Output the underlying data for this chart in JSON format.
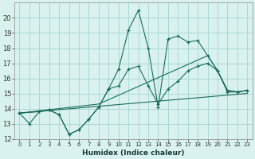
{
  "xlabel": "Humidex (Indice chaleur)",
  "bg_color": "#d9f2f0",
  "grid_color": "#aad8d4",
  "line_color": "#1a6b5a",
  "xlim": [
    -0.5,
    23.5
  ],
  "ylim": [
    12,
    21
  ],
  "yticks": [
    12,
    13,
    14,
    15,
    16,
    17,
    18,
    19,
    20
  ],
  "xticks": [
    0,
    1,
    2,
    3,
    4,
    5,
    6,
    7,
    8,
    9,
    10,
    11,
    12,
    13,
    14,
    15,
    16,
    17,
    18,
    19,
    20,
    21,
    22,
    23
  ],
  "series": [
    {
      "x": [
        0,
        1,
        2,
        3,
        4,
        5,
        6,
        7,
        8,
        9,
        10,
        11,
        12,
        13,
        14,
        15,
        16,
        17,
        18,
        19,
        20,
        21,
        22,
        23
      ],
      "y": [
        13.7,
        13.0,
        13.8,
        13.9,
        13.6,
        12.3,
        12.6,
        13.3,
        14.1,
        15.3,
        16.6,
        19.2,
        20.5,
        18.0,
        14.1,
        18.6,
        18.8,
        18.4,
        18.5,
        17.5,
        16.5,
        15.1,
        15.1,
        15.2
      ],
      "marker": true
    },
    {
      "x": [
        0,
        2,
        3,
        4,
        5,
        6,
        7,
        8,
        9,
        10,
        11,
        12,
        13,
        14,
        15,
        16,
        17,
        18,
        19,
        20,
        21,
        22,
        23
      ],
      "y": [
        13.7,
        13.8,
        13.9,
        13.6,
        12.3,
        12.6,
        13.3,
        14.1,
        15.3,
        15.5,
        16.6,
        16.8,
        15.5,
        14.3,
        15.3,
        15.8,
        16.5,
        16.8,
        17.0,
        16.5,
        15.2,
        15.1,
        15.2
      ],
      "marker": true
    },
    {
      "x": [
        0,
        8,
        19,
        20,
        21,
        22,
        23
      ],
      "y": [
        13.7,
        14.3,
        17.5,
        16.5,
        15.2,
        15.1,
        15.2
      ],
      "marker": false
    },
    {
      "x": [
        0,
        23
      ],
      "y": [
        13.7,
        15.0
      ],
      "marker": false
    }
  ]
}
